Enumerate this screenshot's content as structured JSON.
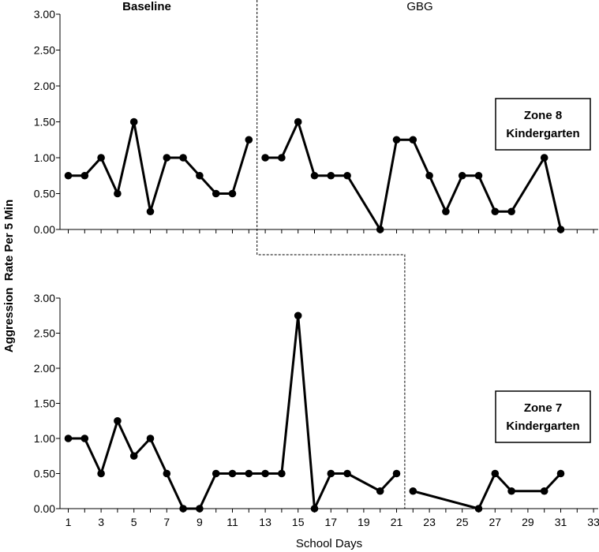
{
  "chart_data": {
    "type": "line",
    "ylabel": "Aggression  Rate Per 5 Min",
    "xlabel": "School Days",
    "phase_labels": [
      "Baseline",
      "GBG"
    ],
    "yticks": [
      "0.00",
      "0.50",
      "1.00",
      "1.50",
      "2.00",
      "2.50",
      "3.00"
    ],
    "ylim": [
      0,
      3
    ],
    "xlim": [
      0.5,
      33.5
    ],
    "xtick_labels": [
      "1",
      "3",
      "5",
      "7",
      "9",
      "11",
      "13",
      "15",
      "17",
      "19",
      "21",
      "23",
      "25",
      "27",
      "29",
      "31",
      "33"
    ],
    "panels": [
      {
        "name": "Zone 8",
        "legend": [
          "Zone 8",
          "Kindergarten"
        ],
        "phase_change_x": 12.5,
        "series": [
          {
            "phase": "Baseline",
            "points": [
              [
                1,
                0.75
              ],
              [
                2,
                0.75
              ],
              [
                3,
                1.0
              ],
              [
                4,
                0.5
              ],
              [
                5,
                1.5
              ],
              [
                6,
                0.25
              ],
              [
                7,
                1.0
              ],
              [
                8,
                1.0
              ],
              [
                9,
                0.75
              ],
              [
                10,
                0.5
              ],
              [
                11,
                0.5
              ],
              [
                12,
                1.25
              ]
            ]
          },
          {
            "phase": "GBG",
            "points": [
              [
                13,
                1.0
              ],
              [
                14,
                1.0
              ],
              [
                15,
                1.5
              ],
              [
                16,
                0.75
              ],
              [
                17,
                0.75
              ],
              [
                18,
                0.75
              ],
              [
                20,
                0.0
              ],
              [
                21,
                1.25
              ],
              [
                22,
                1.25
              ],
              [
                23,
                0.75
              ],
              [
                24,
                0.25
              ],
              [
                25,
                0.75
              ],
              [
                26,
                0.75
              ],
              [
                27,
                0.25
              ],
              [
                28,
                0.25
              ],
              [
                30,
                1.0
              ],
              [
                31,
                0.0
              ]
            ]
          }
        ]
      },
      {
        "name": "Zone 7",
        "legend": [
          "Zone 7",
          "Kindergarten"
        ],
        "phase_change_x": 21.5,
        "series": [
          {
            "phase": "Baseline",
            "points": [
              [
                1,
                1.0
              ],
              [
                2,
                1.0
              ],
              [
                3,
                0.5
              ],
              [
                4,
                1.25
              ],
              [
                5,
                0.75
              ],
              [
                6,
                1.0
              ],
              [
                7,
                0.5
              ],
              [
                8,
                0.0
              ],
              [
                9,
                0.0
              ],
              [
                10,
                0.5
              ],
              [
                11,
                0.5
              ],
              [
                12,
                0.5
              ],
              [
                13,
                0.5
              ],
              [
                14,
                0.5
              ],
              [
                15,
                2.75
              ],
              [
                16,
                0.0
              ],
              [
                17,
                0.5
              ],
              [
                18,
                0.5
              ],
              [
                20,
                0.25
              ],
              [
                21,
                0.5
              ]
            ]
          },
          {
            "phase": "GBG",
            "points": [
              [
                22,
                0.25
              ],
              [
                26,
                0.0
              ],
              [
                27,
                0.5
              ],
              [
                28,
                0.25
              ],
              [
                30,
                0.25
              ],
              [
                31,
                0.5
              ]
            ]
          }
        ]
      }
    ]
  }
}
